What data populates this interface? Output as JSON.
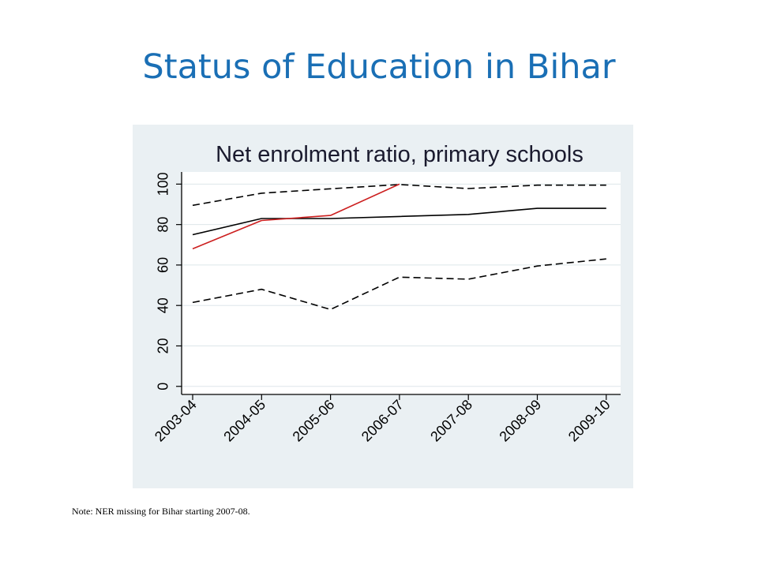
{
  "slide": {
    "title": "Status of Education in Bihar",
    "note": "Note: NER missing for Bihar starting 2007-08."
  },
  "colors": {
    "title": "#1a6fb5",
    "panel_background": "#eaf0f3",
    "plot_background": "#ffffff",
    "gridline": "#dde6ea",
    "black_series": "#000000",
    "red_series": "#cc1f1f"
  },
  "chart_data": {
    "type": "line",
    "title": "Net enrolment ratio, primary schools",
    "xlabel": "",
    "ylabel": "",
    "categories": [
      "2003-04",
      "2004-05",
      "2005-06",
      "2006-07",
      "2007-08",
      "2008-09",
      "2009-10"
    ],
    "yticks": [
      0,
      20,
      40,
      60,
      80,
      100
    ],
    "ytick_labels": [
      "0",
      "20",
      "40",
      "60",
      "80",
      "100"
    ],
    "ylim": [
      -4,
      106
    ],
    "grid": true,
    "legend": "none",
    "series": [
      {
        "values": [
          89.5,
          95.5,
          97.7,
          99.8,
          97.8,
          99.5,
          99.5
        ],
        "style": "dashed",
        "color": "#000000"
      },
      {
        "values": [
          75,
          83,
          83,
          84,
          85,
          88,
          88
        ],
        "style": "solid",
        "color": "#000000"
      },
      {
        "values": [
          68,
          82,
          84.5,
          100,
          null,
          null,
          null
        ],
        "style": "solid",
        "color": "#cc1f1f"
      },
      {
        "values": [
          41.5,
          48,
          38,
          54,
          53,
          59.5,
          63
        ],
        "style": "dashed",
        "color": "#000000"
      }
    ]
  }
}
